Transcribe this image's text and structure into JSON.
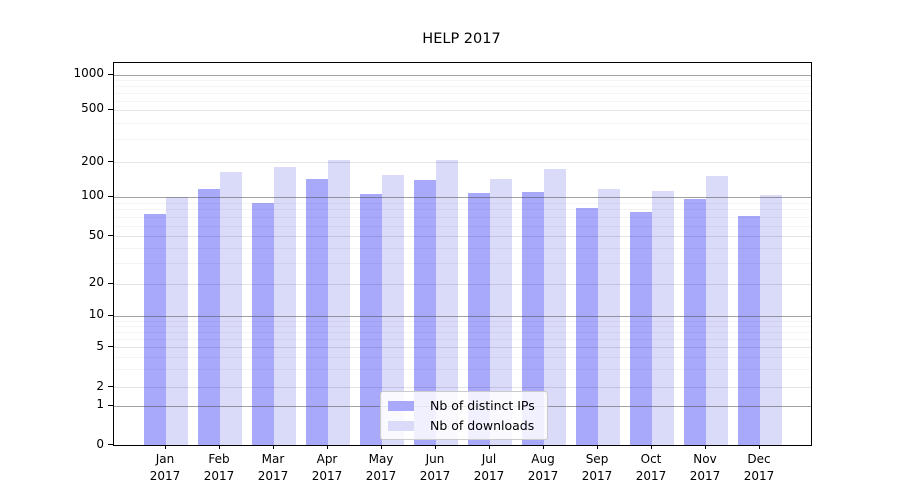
{
  "title": "HELP 2017",
  "chart_data": {
    "type": "bar",
    "title": "HELP 2017",
    "xlabel": "",
    "ylabel": "",
    "yscale": "symlog",
    "ylim": [
      0,
      1250
    ],
    "grid": true,
    "legend_position": "lower-center-inside",
    "yticks": [
      0,
      1,
      2,
      5,
      10,
      20,
      50,
      100,
      200,
      500,
      1000
    ],
    "months": [
      "Jan",
      "Feb",
      "Mar",
      "Apr",
      "May",
      "Jun",
      "Jul",
      "Aug",
      "Sep",
      "Oct",
      "Nov",
      "Dec"
    ],
    "year": "2017",
    "categories": [
      "Jan 2017",
      "Feb 2017",
      "Mar 2017",
      "Apr 2017",
      "May 2017",
      "Jun 2017",
      "Jul 2017",
      "Aug 2017",
      "Sep 2017",
      "Oct 2017",
      "Nov 2017",
      "Dec 2017"
    ],
    "series": [
      {
        "name": "Nb of distinct IPs",
        "color": "#a9a9fb",
        "values": [
          73,
          116,
          89,
          142,
          106,
          138,
          107,
          109,
          82,
          76,
          95,
          71
        ]
      },
      {
        "name": "Nb of downloads",
        "color": "#dadaf9",
        "values": [
          100,
          165,
          180,
          207,
          154,
          206,
          143,
          173,
          117,
          112,
          152,
          104
        ]
      }
    ]
  }
}
